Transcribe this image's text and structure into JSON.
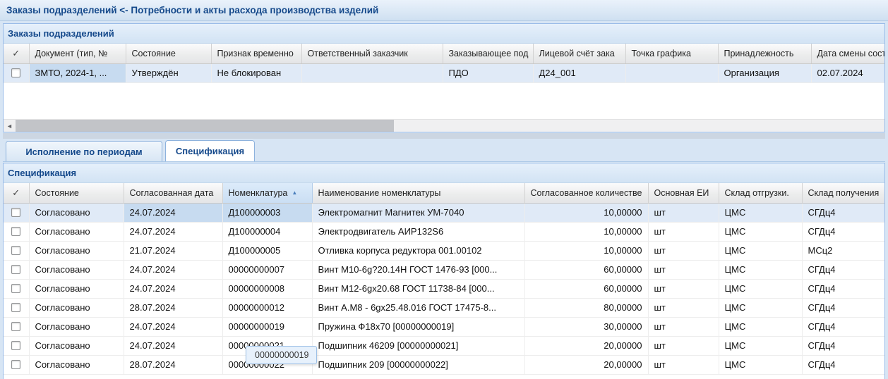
{
  "window": {
    "title": "Заказы подразделений <- Потребности и акты расхода производства изделий"
  },
  "icons": {
    "select_all_check": "✓",
    "sort_asc": "▲",
    "scroll_left_arrow": "◄"
  },
  "top_panel": {
    "title": "Заказы подразделений",
    "columns": [
      "Документ (тип, №",
      "Состояние",
      "Признак временно",
      "Ответственный заказчик",
      "Заказывающее под",
      "Лицевой счёт зака",
      "Точка графика",
      "Принадлежность",
      "Дата смены сост"
    ],
    "rows": [
      {
        "doc": "ЗМТО, 2024-1, ...",
        "state": "Утверждён",
        "block": "Не блокирован",
        "responsible": "",
        "ordering": "ПДО",
        "account": "Д24_001",
        "point": "",
        "belong": "Организация",
        "date": "02.07.2024"
      }
    ]
  },
  "tabs": [
    {
      "label": "Исполнение по периодам",
      "active": false
    },
    {
      "label": "Спецификация",
      "active": true
    }
  ],
  "bottom_panel": {
    "title": "Спецификация",
    "columns": [
      "Состояние",
      "Согласованная дата",
      "Номенклатура",
      "Наименование номенклатуры",
      "Согласованное количестве",
      "Основная ЕИ",
      "Склад отгрузки.",
      "Склад получения"
    ],
    "sorted_column": "Номенклатура",
    "sort_direction": "asc",
    "rows": [
      {
        "state": "Согласовано",
        "date": "24.07.2024",
        "nomenclature": "Д100000003",
        "name": "Электромагнит Магнитек УМ-7040",
        "qty": "10,00000",
        "unit": "шт",
        "warehouse_ship": "ЦМС",
        "warehouse_recv": "СГДц4"
      },
      {
        "state": "Согласовано",
        "date": "24.07.2024",
        "nomenclature": "Д100000004",
        "name": "Электродвигатель АИР132S6",
        "qty": "10,00000",
        "unit": "шт",
        "warehouse_ship": "ЦМС",
        "warehouse_recv": "СГДц4"
      },
      {
        "state": "Согласовано",
        "date": "21.07.2024",
        "nomenclature": "Д100000005",
        "name": "Отливка корпуса редуктора 001.00102",
        "qty": "10,00000",
        "unit": "шт",
        "warehouse_ship": "ЦМС",
        "warehouse_recv": "МСц2"
      },
      {
        "state": "Согласовано",
        "date": "24.07.2024",
        "nomenclature": "00000000007",
        "name": "Винт М10-6g?20.14Н ГОСТ 1476-93 [000...",
        "qty": "60,00000",
        "unit": "шт",
        "warehouse_ship": "ЦМС",
        "warehouse_recv": "СГДц4"
      },
      {
        "state": "Согласовано",
        "date": "24.07.2024",
        "nomenclature": "00000000008",
        "name": "Винт М12-6gх20.68 ГОСТ 11738-84 [000...",
        "qty": "60,00000",
        "unit": "шт",
        "warehouse_ship": "ЦМС",
        "warehouse_recv": "СГДц4"
      },
      {
        "state": "Согласовано",
        "date": "28.07.2024",
        "nomenclature": "00000000012",
        "name": "Винт А.М8 - 6gх25.48.016 ГОСТ 17475-8...",
        "qty": "80,00000",
        "unit": "шт",
        "warehouse_ship": "ЦМС",
        "warehouse_recv": "СГДц4"
      },
      {
        "state": "Согласовано",
        "date": "24.07.2024",
        "nomenclature": "00000000019",
        "name": "Пружина Ф18х70 [00000000019]",
        "qty": "30,00000",
        "unit": "шт",
        "warehouse_ship": "ЦМС",
        "warehouse_recv": "СГДц4"
      },
      {
        "state": "Согласовано",
        "date": "24.07.2024",
        "nomenclature": "00000000021",
        "name": "Подшипник 46209 [00000000021]",
        "qty": "20,00000",
        "unit": "шт",
        "warehouse_ship": "ЦМС",
        "warehouse_recv": "СГДц4"
      },
      {
        "state": "Согласовано",
        "date": "28.07.2024",
        "nomenclature": "00000000022",
        "name": "Подшипник 209 [00000000022]",
        "qty": "20,00000",
        "unit": "шт",
        "warehouse_ship": "ЦМС",
        "warehouse_recv": "СГДц4"
      }
    ]
  },
  "tooltip": {
    "text": "00000000019"
  },
  "colors": {
    "accent_text": "#15498b",
    "panel_border": "#99bbe8",
    "selected_row": "#e0eaf7",
    "focused_cell": "#c7dbf0",
    "tooltip_bg": "#e7f1fc"
  }
}
